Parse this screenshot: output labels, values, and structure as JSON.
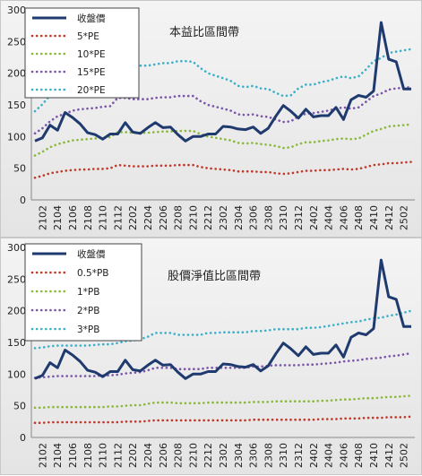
{
  "chart_data": [
    {
      "type": "line",
      "title": "本益比區間帶",
      "ylim": [
        0,
        300
      ],
      "yticks": [
        0,
        50,
        100,
        150,
        200,
        250,
        300
      ],
      "legend_position": "top-left",
      "grid": false,
      "x": [
        "2101",
        "2102",
        "2103",
        "2104",
        "2105",
        "2106",
        "2107",
        "2108",
        "2109",
        "2110",
        "2111",
        "2112",
        "2201",
        "2202",
        "2203",
        "2204",
        "2205",
        "2206",
        "2207",
        "2208",
        "2209",
        "2210",
        "2211",
        "2212",
        "2301",
        "2302",
        "2303",
        "2304",
        "2305",
        "2306",
        "2307",
        "2308",
        "2309",
        "2310",
        "2311",
        "2312",
        "2401",
        "2402",
        "2403",
        "2404",
        "2405",
        "2406",
        "2407",
        "2408",
        "2409",
        "2410",
        "2411",
        "2412",
        "2501",
        "2502",
        "2503"
      ],
      "xtick_labels": [
        "2102",
        "2104",
        "2106",
        "2108",
        "2110",
        "2112",
        "2202",
        "2204",
        "2206",
        "2208",
        "2210",
        "2212",
        "2302",
        "2304",
        "2306",
        "2308",
        "2310",
        "2312",
        "2402",
        "2404",
        "2406",
        "2408",
        "2410",
        "2412",
        "2502"
      ],
      "series": [
        {
          "name": "收盤價",
          "color": "#1f3a6e",
          "style": "solid",
          "values": [
            93,
            98,
            118,
            110,
            138,
            130,
            120,
            106,
            103,
            96,
            104,
            104,
            122,
            107,
            105,
            114,
            122,
            114,
            115,
            103,
            93,
            100,
            100,
            104,
            104,
            116,
            115,
            112,
            111,
            115,
            105,
            113,
            132,
            149,
            140,
            129,
            143,
            131,
            133,
            133,
            146,
            127,
            158,
            165,
            162,
            172,
            280,
            222,
            218,
            175,
            175
          ]
        },
        {
          "name": "5*PE",
          "color": "#c0392b",
          "style": "dotted",
          "values": [
            35,
            38,
            42,
            44,
            46,
            47,
            48,
            48,
            49,
            49,
            50,
            55,
            54,
            53,
            53,
            53,
            54,
            54,
            54,
            55,
            55,
            55,
            52,
            50,
            49,
            48,
            47,
            45,
            45,
            45,
            44,
            44,
            42,
            41,
            42,
            44,
            46,
            46,
            47,
            47,
            48,
            49,
            48,
            49,
            52,
            55,
            56,
            58,
            58,
            59,
            60
          ]
        },
        {
          "name": "10*PE",
          "color": "#8ab83a",
          "style": "dotted",
          "values": [
            70,
            76,
            83,
            88,
            91,
            94,
            95,
            96,
            97,
            98,
            99,
            107,
            107,
            106,
            106,
            106,
            107,
            108,
            108,
            109,
            109,
            109,
            104,
            100,
            98,
            96,
            94,
            90,
            89,
            90,
            88,
            87,
            85,
            82,
            83,
            88,
            91,
            91,
            93,
            94,
            96,
            97,
            96,
            97,
            103,
            109,
            112,
            116,
            117,
            118,
            119
          ]
        },
        {
          "name": "15*PE",
          "color": "#7a55a8",
          "style": "dotted",
          "values": [
            105,
            113,
            124,
            132,
            136,
            141,
            143,
            144,
            145,
            147,
            148,
            161,
            161,
            159,
            159,
            159,
            161,
            162,
            162,
            164,
            164,
            164,
            156,
            150,
            147,
            144,
            141,
            135,
            134,
            135,
            132,
            131,
            127,
            123,
            124,
            132,
            136,
            137,
            139,
            141,
            144,
            146,
            144,
            146,
            155,
            164,
            168,
            174,
            176,
            177,
            178
          ]
        },
        {
          "name": "20*PE",
          "color": "#3bb0c9",
          "style": "dotted",
          "values": [
            140,
            151,
            165,
            176,
            182,
            188,
            191,
            192,
            194,
            196,
            198,
            215,
            214,
            212,
            212,
            212,
            214,
            216,
            216,
            219,
            219,
            218,
            208,
            200,
            196,
            192,
            188,
            180,
            178,
            180,
            176,
            175,
            169,
            164,
            165,
            176,
            182,
            182,
            186,
            188,
            192,
            195,
            192,
            195,
            206,
            219,
            224,
            232,
            234,
            236,
            238
          ]
        }
      ]
    },
    {
      "type": "line",
      "title": "股價淨值比區間帶",
      "ylim": [
        0,
        300
      ],
      "yticks": [
        0,
        50,
        100,
        150,
        200,
        250,
        300
      ],
      "legend_position": "top-left",
      "grid": false,
      "x": [
        "2101",
        "2102",
        "2103",
        "2104",
        "2105",
        "2106",
        "2107",
        "2108",
        "2109",
        "2110",
        "2111",
        "2112",
        "2201",
        "2202",
        "2203",
        "2204",
        "2205",
        "2206",
        "2207",
        "2208",
        "2209",
        "2210",
        "2211",
        "2212",
        "2301",
        "2302",
        "2303",
        "2304",
        "2305",
        "2306",
        "2307",
        "2308",
        "2309",
        "2310",
        "2311",
        "2312",
        "2401",
        "2402",
        "2403",
        "2404",
        "2405",
        "2406",
        "2407",
        "2408",
        "2409",
        "2410",
        "2411",
        "2412",
        "2501",
        "2502",
        "2503"
      ],
      "xtick_labels": [
        "2102",
        "2104",
        "2106",
        "2108",
        "2110",
        "2112",
        "2202",
        "2204",
        "2206",
        "2208",
        "2210",
        "2212",
        "2302",
        "2304",
        "2306",
        "2308",
        "2310",
        "2312",
        "2402",
        "2404",
        "2406",
        "2408",
        "2410",
        "2412",
        "2502"
      ],
      "series": [
        {
          "name": "收盤價",
          "color": "#1f3a6e",
          "style": "solid",
          "values": [
            93,
            98,
            118,
            110,
            138,
            130,
            120,
            106,
            103,
            96,
            104,
            104,
            122,
            107,
            105,
            114,
            122,
            114,
            115,
            103,
            93,
            100,
            100,
            104,
            104,
            116,
            115,
            112,
            111,
            115,
            105,
            113,
            132,
            149,
            140,
            129,
            143,
            131,
            133,
            133,
            146,
            127,
            158,
            165,
            162,
            172,
            280,
            222,
            218,
            175,
            175
          ]
        },
        {
          "name": "0.5*PB",
          "color": "#c0392b",
          "style": "dotted",
          "values": [
            23,
            23,
            24,
            24,
            24,
            24,
            24,
            24,
            24,
            24,
            24,
            24,
            25,
            25,
            25,
            26,
            27,
            27,
            27,
            27,
            27,
            27,
            27,
            27,
            27,
            27,
            27,
            27,
            27,
            28,
            28,
            28,
            28,
            28,
            28,
            28,
            28,
            28,
            29,
            29,
            29,
            30,
            30,
            30,
            31,
            31,
            31,
            32,
            32,
            32,
            33
          ]
        },
        {
          "name": "1*PB",
          "color": "#8ab83a",
          "style": "dotted",
          "values": [
            47,
            47,
            48,
            48,
            48,
            48,
            48,
            48,
            48,
            48,
            49,
            49,
            50,
            51,
            51,
            53,
            55,
            55,
            55,
            54,
            54,
            54,
            54,
            55,
            55,
            55,
            55,
            55,
            55,
            56,
            56,
            56,
            57,
            57,
            57,
            57,
            57,
            57,
            58,
            58,
            59,
            60,
            60,
            61,
            62,
            62,
            63,
            64,
            64,
            65,
            66
          ]
        },
        {
          "name": "2*PB",
          "color": "#7a55a8",
          "style": "dotted",
          "values": [
            94,
            95,
            96,
            97,
            97,
            97,
            97,
            97,
            97,
            98,
            98,
            99,
            101,
            102,
            103,
            106,
            110,
            110,
            110,
            108,
            108,
            108,
            108,
            110,
            110,
            110,
            110,
            110,
            110,
            112,
            112,
            113,
            114,
            114,
            114,
            114,
            115,
            115,
            116,
            117,
            118,
            120,
            121,
            122,
            124,
            125,
            126,
            128,
            129,
            131,
            133
          ]
        },
        {
          "name": "3*PB",
          "color": "#3bb0c9",
          "style": "dotted",
          "values": [
            141,
            142,
            144,
            145,
            145,
            145,
            145,
            145,
            146,
            147,
            147,
            149,
            152,
            153,
            155,
            159,
            165,
            165,
            165,
            162,
            162,
            162,
            162,
            165,
            165,
            166,
            166,
            166,
            166,
            168,
            168,
            169,
            171,
            171,
            171,
            171,
            173,
            173,
            174,
            176,
            178,
            180,
            182,
            183,
            186,
            188,
            189,
            192,
            194,
            197,
            200
          ]
        }
      ]
    }
  ]
}
